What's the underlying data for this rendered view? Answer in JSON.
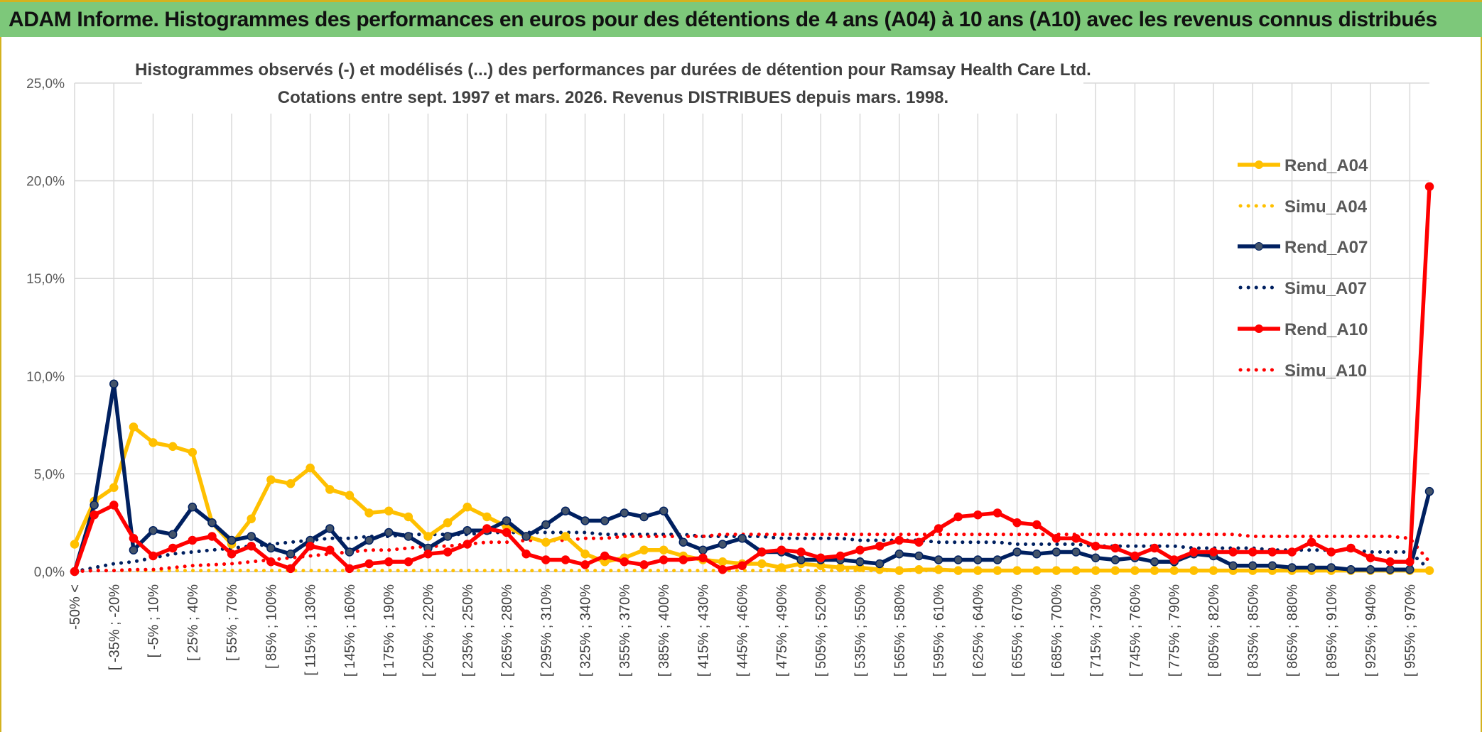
{
  "header": {
    "title": "ADAM Informe. Histogrammes des performances en euros pour des détentions de 4 ans (A04) à 10 ans (A10) avec les revenus connus distribués"
  },
  "chart_data": {
    "type": "line",
    "title": "Histogrammes observés (-) et modélisés (...) des performances par durées de détention pour Ramsay Health Care Ltd.",
    "subtitle": "Cotations entre sept. 1997 et mars. 2026. Revenus DISTRIBUES depuis mars. 1998.",
    "xlabel": "",
    "ylabel": "",
    "ylim": [
      0,
      25
    ],
    "yticks": [
      "0,0%",
      "5,0%",
      "10,0%",
      "15,0%",
      "20,0%",
      "25,0%"
    ],
    "grid": true,
    "legend_position": "right",
    "x_tick_labels": [
      "-50% <",
      "[ -35% ; -20%",
      "[ -5% ; 10%",
      "[ 25% ; 40%",
      "[ 55% ; 70%",
      "[ 85% ; 100%",
      "[ 115% ; 130%",
      "[ 145% ; 160%",
      "[ 175% ; 190%",
      "[ 205% ; 220%",
      "[ 235% ; 250%",
      "[ 265% ; 280%",
      "[ 295% ; 310%",
      "[ 325% ; 340%",
      "[ 355% ; 370%",
      "[ 385% ; 400%",
      "[ 415% ; 430%",
      "[ 445% ; 460%",
      "[ 475% ; 490%",
      "[ 505% ; 520%",
      "[ 535% ; 550%",
      "[ 565% ; 580%",
      "[ 595% ; 610%",
      "[ 625% ; 640%",
      "[ 655% ; 670%",
      "[ 685% ; 700%",
      "[ 715% ; 730%",
      "[ 745% ; 760%",
      "[ 775% ; 790%",
      "[ 805% ; 820%",
      "[ 835% ; 850%",
      "[ 865% ; 880%",
      "[ 895% ; 910%",
      "[ 925% ; 940%",
      "[ 955% ; 970%"
    ],
    "series": [
      {
        "name": "Rend_A04",
        "style": "solid",
        "color": "#ffc000",
        "values": [
          1.4,
          3.6,
          4.3,
          7.4,
          6.6,
          6.4,
          6.1,
          2.5,
          1.4,
          2.7,
          4.7,
          4.5,
          5.3,
          4.2,
          3.9,
          3.0,
          3.1,
          2.8,
          1.8,
          2.5,
          3.3,
          2.8,
          2.3,
          1.8,
          1.5,
          1.8,
          0.9,
          0.5,
          0.7,
          1.1,
          1.1,
          0.8,
          0.6,
          0.5,
          0.4,
          0.4,
          0.2,
          0.4,
          0.3,
          0.2,
          0.2,
          0.1,
          0.05,
          0.1,
          0.1,
          0.05,
          0.05,
          0.05,
          0.05,
          0.05,
          0.05,
          0.05,
          0.05,
          0.05,
          0.05,
          0.05,
          0.05,
          0.05,
          0.05,
          0.05,
          0.05,
          0.05,
          0.05,
          0.05,
          0.05,
          0.05,
          0.05,
          0.05,
          0.05,
          0.05
        ]
      },
      {
        "name": "Simu_A04",
        "style": "dotted",
        "color": "#ffc000",
        "values": [
          0.05,
          0.05,
          0.05,
          0.05,
          0.05,
          0.05,
          0.05,
          0.05,
          0.05,
          0.05,
          0.05,
          0.05,
          0.05,
          0.05,
          0.05,
          0.05,
          0.05,
          0.05,
          0.05,
          0.05,
          0.05,
          0.05,
          0.05,
          0.05,
          0.05,
          0.05,
          0.05,
          0.05,
          0.05,
          0.05,
          0.05,
          0.05,
          0.05,
          0.05,
          0.05,
          0.05,
          0.05,
          0.05,
          0.05,
          0.05,
          0.05,
          0.05,
          0.05,
          0.05,
          0.05,
          0.05,
          0.05,
          0.05,
          0.05,
          0.05,
          0.05,
          0.05,
          0.05,
          0.05,
          0.05,
          0.05,
          0.05,
          0.05,
          0.05,
          0.05,
          0.05,
          0.05,
          0.05,
          0.05,
          0.05,
          0.05,
          0.05,
          0.05,
          0.05,
          0.05
        ]
      },
      {
        "name": "Rend_A07",
        "style": "solid",
        "color": "#002060",
        "values": [
          0.0,
          3.4,
          9.6,
          1.1,
          2.1,
          1.9,
          3.3,
          2.5,
          1.6,
          1.8,
          1.2,
          0.9,
          1.6,
          2.2,
          1.0,
          1.6,
          2.0,
          1.8,
          1.2,
          1.8,
          2.1,
          2.1,
          2.6,
          1.8,
          2.4,
          3.1,
          2.6,
          2.6,
          3.0,
          2.8,
          3.1,
          1.5,
          1.1,
          1.4,
          1.7,
          1.0,
          1.0,
          0.6,
          0.6,
          0.6,
          0.5,
          0.4,
          0.9,
          0.8,
          0.6,
          0.6,
          0.6,
          0.6,
          1.0,
          0.9,
          1.0,
          1.0,
          0.7,
          0.6,
          0.7,
          0.5,
          0.5,
          0.9,
          0.8,
          0.3,
          0.3,
          0.3,
          0.2,
          0.2,
          0.2,
          0.1,
          0.1,
          0.1,
          0.1,
          4.1
        ]
      },
      {
        "name": "Simu_A07",
        "style": "dotted",
        "color": "#002060",
        "values": [
          0.0,
          0.2,
          0.4,
          0.5,
          0.7,
          0.9,
          1.0,
          1.1,
          1.2,
          1.3,
          1.4,
          1.5,
          1.6,
          1.7,
          1.7,
          1.8,
          1.8,
          1.9,
          1.9,
          1.9,
          1.9,
          2.0,
          2.0,
          2.0,
          2.0,
          2.0,
          2.0,
          1.9,
          1.9,
          1.9,
          1.9,
          1.9,
          1.8,
          1.8,
          1.8,
          1.8,
          1.7,
          1.7,
          1.7,
          1.7,
          1.6,
          1.6,
          1.6,
          1.6,
          1.5,
          1.5,
          1.5,
          1.5,
          1.4,
          1.4,
          1.4,
          1.4,
          1.3,
          1.3,
          1.3,
          1.3,
          1.3,
          1.2,
          1.2,
          1.2,
          1.2,
          1.1,
          1.1,
          1.1,
          1.1,
          1.1,
          1.0,
          1.0,
          1.0,
          0.1
        ]
      },
      {
        "name": "Rend_A10",
        "style": "solid",
        "color": "#ff0000",
        "values": [
          0.0,
          2.9,
          3.4,
          1.7,
          0.8,
          1.2,
          1.6,
          1.8,
          0.9,
          1.3,
          0.5,
          0.15,
          1.3,
          1.1,
          0.15,
          0.4,
          0.5,
          0.5,
          0.9,
          1.0,
          1.4,
          2.2,
          2.0,
          0.9,
          0.6,
          0.6,
          0.35,
          0.8,
          0.5,
          0.35,
          0.6,
          0.6,
          0.7,
          0.1,
          0.3,
          1.0,
          1.1,
          1.0,
          0.7,
          0.8,
          1.1,
          1.3,
          1.6,
          1.5,
          2.2,
          2.8,
          2.9,
          3.0,
          2.5,
          2.4,
          1.7,
          1.7,
          1.3,
          1.2,
          0.8,
          1.2,
          0.6,
          1.0,
          1.0,
          1.0,
          1.0,
          1.0,
          1.0,
          1.5,
          1.0,
          1.2,
          0.7,
          0.5,
          0.5,
          19.7
        ]
      },
      {
        "name": "Simu_A10",
        "style": "dotted",
        "color": "#ff0000",
        "values": [
          0.0,
          0.05,
          0.05,
          0.1,
          0.1,
          0.2,
          0.3,
          0.35,
          0.4,
          0.5,
          0.6,
          0.7,
          0.8,
          0.9,
          1.0,
          1.1,
          1.1,
          1.2,
          1.3,
          1.3,
          1.4,
          1.5,
          1.5,
          1.6,
          1.6,
          1.6,
          1.7,
          1.7,
          1.8,
          1.8,
          1.8,
          1.8,
          1.8,
          1.9,
          1.9,
          1.9,
          1.9,
          1.9,
          1.9,
          1.9,
          1.9,
          1.9,
          1.9,
          1.9,
          1.9,
          1.9,
          1.9,
          1.9,
          1.9,
          1.9,
          1.9,
          1.9,
          1.9,
          1.9,
          1.9,
          1.9,
          1.9,
          1.9,
          1.9,
          1.9,
          1.8,
          1.8,
          1.8,
          1.8,
          1.8,
          1.8,
          1.8,
          1.8,
          1.7,
          0.5
        ]
      }
    ]
  }
}
